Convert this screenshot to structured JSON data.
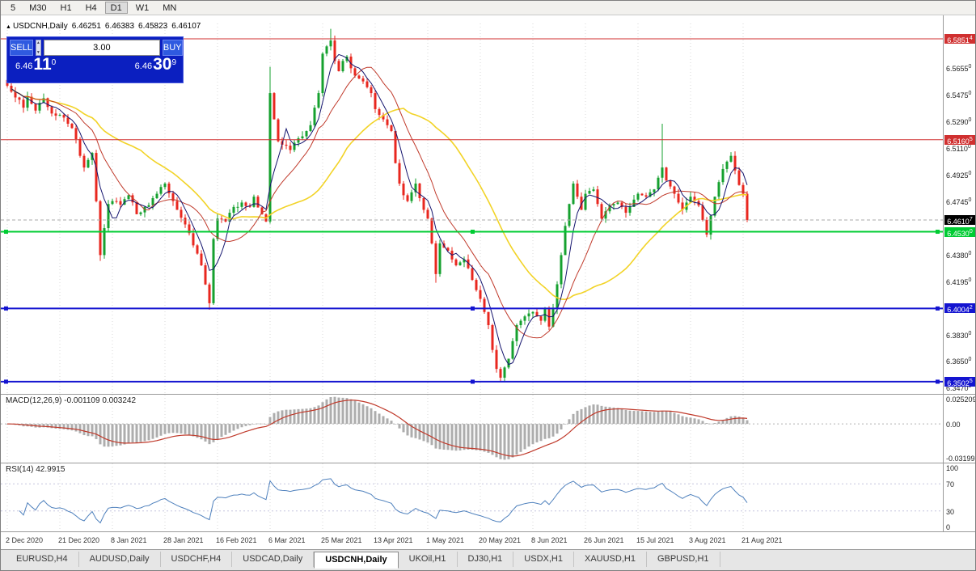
{
  "toolbar": {
    "timeframes": [
      "5",
      "M30",
      "H1",
      "H4",
      "D1",
      "W1",
      "MN"
    ],
    "active": "D1"
  },
  "symbol_header": {
    "arrow": "▲",
    "name": "USDCNH,Daily",
    "open": "6.46251",
    "high": "6.46383",
    "low": "6.45823",
    "close": "6.46107"
  },
  "order_panel": {
    "sell_label": "SELL",
    "buy_label": "BUY",
    "volume": "3.00",
    "sell_price": {
      "base": "6.46",
      "big": "11",
      "sup": "0"
    },
    "buy_price": {
      "base": "6.46",
      "big": "30",
      "sup": "9"
    }
  },
  "price_axis": {
    "labels": [
      "6.56550",
      "6.54750",
      "6.52900",
      "6.51100",
      "6.49250",
      "6.47450",
      "6.43800",
      "6.41950",
      "6.38300",
      "6.36500",
      "6.34700"
    ]
  },
  "hlines": [
    {
      "price": 6.58514,
      "color": "#d03030",
      "width": 1,
      "tag": "6.5851",
      "sup": "4",
      "handles": false
    },
    {
      "price": 6.51605,
      "color": "#d03030",
      "width": 1,
      "tag": "6.5160",
      "sup": "5",
      "handles": false
    },
    {
      "price": 6.453,
      "color": "#00cc33",
      "width": 2,
      "tag": "6.4530",
      "sup": "0",
      "handles": true
    },
    {
      "price": 6.40042,
      "color": "#1414d0",
      "width": 2,
      "tag": "6.4004",
      "sup": "2",
      "handles": true
    },
    {
      "price": 6.35025,
      "color": "#1414d0",
      "width": 2,
      "tag": "6.3502",
      "sup": "5",
      "handles": true
    }
  ],
  "current_price": {
    "value": 6.46107,
    "tag": "6.4610",
    "sup": "7",
    "tag_bg": "#000000"
  },
  "macd": {
    "label": "MACD(12,26,9) -0.001109 0.003242",
    "axis_top": "0.025209",
    "axis_zero": "0.00",
    "axis_bottom": "-0.03199"
  },
  "rsi": {
    "label": "RSI(14) 42.9915",
    "axis": [
      "100",
      "70",
      "30",
      "0"
    ],
    "levels": [
      70,
      30
    ]
  },
  "date_axis": [
    "2 Dec 2020",
    "21 Dec 2020",
    "8 Jan 2021",
    "28 Jan 2021",
    "16 Feb 2021",
    "6 Mar 2021",
    "25 Mar 2021",
    "13 Apr 2021",
    "1 May 2021",
    "20 May 2021",
    "8 Jun 2021",
    "26 Jun 2021",
    "15 Jul 2021",
    "3 Aug 2021",
    "21 Aug 2021"
  ],
  "tabs": [
    "EURUSD,H4",
    "AUDUSD,Daily",
    "USDCHF,H4",
    "USDCAD,Daily",
    "USDCNH,Daily",
    "UKOil,H1",
    "DJ30,H1",
    "USDX,H1",
    "XAUUSD,H1",
    "GBPUSD,H1"
  ],
  "active_tab": "USDCNH,Daily",
  "colors": {
    "candle_up": "#16a12f",
    "candle_down": "#e8271f",
    "ma_fast": "#14146e",
    "ma_mid": "#c03a2b",
    "ma_slow": "#f2d327",
    "macd_hist": "#adadad",
    "macd_signal": "#c03a2b",
    "rsi_line": "#4f81bd",
    "panel_bg": "#0b1fc0",
    "panel_btn": "#2f5ae0",
    "grid": "#d9d9d9"
  },
  "chart_data": {
    "type": "candlestick",
    "title": "USDCNH,Daily",
    "symbol": "USDCNH",
    "timeframe": "Daily",
    "price_range": [
      6.3419,
      6.5957
    ],
    "x_tick_step": 13,
    "overlays": [
      {
        "name": "MA-fast",
        "period": 5
      },
      {
        "name": "MA-mid",
        "period": 13
      },
      {
        "name": "MA-slow",
        "period": 34
      }
    ],
    "indicators": [
      {
        "name": "MACD",
        "params": [
          12,
          26,
          9
        ],
        "values_shown": [
          "-0.001109",
          "0.003242"
        ]
      },
      {
        "name": "RSI",
        "params": [
          14
        ],
        "value_shown": "42.9915"
      }
    ],
    "anchors": [
      [
        0,
        6.553
      ],
      [
        2,
        6.545
      ],
      [
        4,
        6.538
      ],
      [
        5,
        6.5455
      ],
      [
        7,
        6.536
      ],
      [
        9,
        6.5445
      ],
      [
        11,
        6.534
      ],
      [
        13,
        6.533
      ],
      [
        15,
        6.527
      ],
      [
        16,
        6.524
      ],
      [
        18,
        6.505
      ],
      [
        19,
        6.497
      ],
      [
        21,
        6.507
      ],
      [
        23,
        6.437
      ],
      [
        25,
        6.472
      ],
      [
        26,
        6.474
      ],
      [
        28,
        6.4715
      ],
      [
        30,
        6.478
      ],
      [
        32,
        6.465
      ],
      [
        34,
        6.47
      ],
      [
        36,
        6.476
      ],
      [
        37,
        6.479
      ],
      [
        39,
        6.486
      ],
      [
        41,
        6.474
      ],
      [
        42,
        6.468
      ],
      [
        44,
        6.458
      ],
      [
        45,
        6.452
      ],
      [
        47,
        6.438
      ],
      [
        48,
        6.43
      ],
      [
        50,
        6.404
      ],
      [
        51,
        6.448
      ],
      [
        52,
        6.462
      ],
      [
        54,
        6.46
      ],
      [
        55,
        6.466
      ],
      [
        57,
        6.47
      ],
      [
        58,
        6.473
      ],
      [
        60,
        6.47
      ],
      [
        61,
        6.477
      ],
      [
        63,
        6.465
      ],
      [
        64,
        6.46
      ],
      [
        65,
        6.548
      ],
      [
        66,
        6.53
      ],
      [
        67,
        6.515
      ],
      [
        69,
        6.512
      ],
      [
        70,
        6.509
      ],
      [
        71,
        6.514
      ],
      [
        72,
        6.517
      ],
      [
        74,
        6.522
      ],
      [
        75,
        6.526
      ],
      [
        76,
        6.538
      ],
      [
        77,
        6.548
      ],
      [
        78,
        6.575
      ],
      [
        79,
        6.58
      ],
      [
        80,
        6.584
      ],
      [
        81,
        6.57
      ],
      [
        82,
        6.563
      ],
      [
        83,
        6.57
      ],
      [
        84,
        6.573
      ],
      [
        85,
        6.565
      ],
      [
        86,
        6.56
      ],
      [
        87,
        6.558
      ],
      [
        88,
        6.556
      ],
      [
        89,
        6.552
      ],
      [
        90,
        6.548
      ],
      [
        91,
        6.537
      ],
      [
        92,
        6.533
      ],
      [
        93,
        6.53
      ],
      [
        94,
        6.526
      ],
      [
        95,
        6.522
      ],
      [
        96,
        6.5
      ],
      [
        97,
        6.486
      ],
      [
        98,
        6.478
      ],
      [
        99,
        6.474
      ],
      [
        100,
        6.48
      ],
      [
        101,
        6.486
      ],
      [
        102,
        6.476
      ],
      [
        103,
        6.468
      ],
      [
        104,
        6.462
      ],
      [
        105,
        6.445
      ],
      [
        106,
        6.424
      ],
      [
        107,
        6.445
      ],
      [
        108,
        6.442
      ],
      [
        109,
        6.44
      ],
      [
        110,
        6.434
      ],
      [
        111,
        6.43
      ],
      [
        112,
        6.432
      ],
      [
        113,
        6.434
      ],
      [
        114,
        6.428
      ],
      [
        115,
        6.42
      ],
      [
        116,
        6.413
      ],
      [
        117,
        6.407
      ],
      [
        118,
        6.398
      ],
      [
        119,
        6.389
      ],
      [
        120,
        6.372
      ],
      [
        121,
        6.359
      ],
      [
        122,
        6.353
      ],
      [
        123,
        6.36
      ],
      [
        124,
        6.366
      ],
      [
        125,
        6.378
      ],
      [
        126,
        6.389
      ],
      [
        127,
        6.392
      ],
      [
        128,
        6.395
      ],
      [
        129,
        6.397
      ],
      [
        130,
        6.398
      ],
      [
        131,
        6.395
      ],
      [
        132,
        6.392
      ],
      [
        133,
        6.4
      ],
      [
        134,
        6.388
      ],
      [
        135,
        6.4
      ],
      [
        136,
        6.417
      ],
      [
        137,
        6.437
      ],
      [
        138,
        6.457
      ],
      [
        139,
        6.472
      ],
      [
        140,
        6.486
      ],
      [
        141,
        6.477
      ],
      [
        142,
        6.468
      ],
      [
        143,
        6.479
      ],
      [
        144,
        6.481
      ],
      [
        145,
        6.482
      ],
      [
        146,
        6.472
      ],
      [
        147,
        6.462
      ],
      [
        148,
        6.467
      ],
      [
        149,
        6.471
      ],
      [
        150,
        6.472
      ],
      [
        151,
        6.473
      ],
      [
        152,
        6.47
      ],
      [
        153,
        6.466
      ],
      [
        154,
        6.47
      ],
      [
        155,
        6.475
      ],
      [
        156,
        6.479
      ],
      [
        157,
        6.478
      ],
      [
        158,
        6.477
      ],
      [
        159,
        6.48
      ],
      [
        160,
        6.482
      ],
      [
        161,
        6.49
      ],
      [
        162,
        6.497
      ],
      [
        163,
        6.488
      ],
      [
        164,
        6.484
      ],
      [
        165,
        6.479
      ],
      [
        166,
        6.473
      ],
      [
        167,
        6.468
      ],
      [
        168,
        6.473
      ],
      [
        169,
        6.477
      ],
      [
        170,
        6.474
      ],
      [
        171,
        6.471
      ],
      [
        172,
        6.461
      ],
      [
        173,
        6.451
      ],
      [
        174,
        6.464
      ],
      [
        175,
        6.477
      ],
      [
        176,
        6.487
      ],
      [
        177,
        6.496
      ],
      [
        178,
        6.501
      ],
      [
        179,
        6.505
      ],
      [
        180,
        6.495
      ],
      [
        181,
        6.485
      ],
      [
        182,
        6.479
      ],
      [
        183,
        6.46107
      ]
    ],
    "wick_overrides": {
      "23": {
        "low": 6.433
      },
      "50": {
        "low": 6.3995
      },
      "65": {
        "high": 6.566
      },
      "80": {
        "high": 6.592
      },
      "106": {
        "low": 6.418
      },
      "122": {
        "low": 6.3504
      },
      "162": {
        "high": 6.527
      }
    }
  }
}
